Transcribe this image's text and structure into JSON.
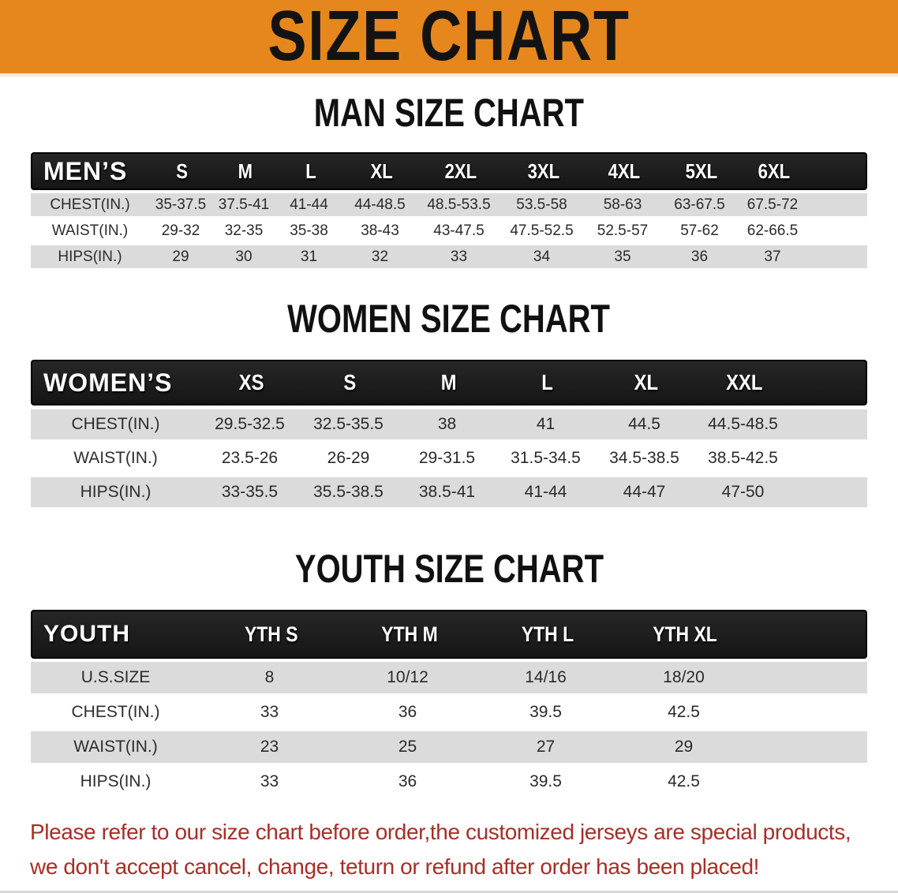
{
  "banner": {
    "title": "SIZE CHART"
  },
  "colors": {
    "banner_bg": "#E6871E",
    "header_bar": "#161616",
    "row_alt": "#DBDBDB",
    "row_plain": "#FFFFFF",
    "disclaimer_red": "#A52F28"
  },
  "sections": [
    {
      "id": "men",
      "heading": "MAN SIZE CHART",
      "table": {
        "label": "MEN’S",
        "columns": [
          "S",
          "M",
          "L",
          "XL",
          "2XL",
          "3XL",
          "4XL",
          "5XL",
          "6XL"
        ],
        "rows": [
          {
            "label": "CHEST(IN.)",
            "values": [
              "35-37.5",
              "37.5-41",
              "41-44",
              "44-48.5",
              "48.5-53.5",
              "53.5-58",
              "58-63",
              "63-67.5",
              "67.5-72"
            ]
          },
          {
            "label": "WAIST(IN.)",
            "values": [
              "29-32",
              "32-35",
              "35-38",
              "38-43",
              "43-47.5",
              "47.5-52.5",
              "52.5-57",
              "57-62",
              "62-66.5"
            ]
          },
          {
            "label": "HIPS(IN.)",
            "values": [
              "29",
              "30",
              "31",
              "32",
              "33",
              "34",
              "35",
              "36",
              "37"
            ]
          }
        ]
      }
    },
    {
      "id": "women",
      "heading": "WOMEN SIZE CHART",
      "table": {
        "label": "WOMEN’S",
        "columns": [
          "XS",
          "S",
          "M",
          "L",
          "XL",
          "XXL"
        ],
        "rows": [
          {
            "label": "CHEST(IN.)",
            "values": [
              "29.5-32.5",
              "32.5-35.5",
              "38",
              "41",
              "44.5",
              "44.5-48.5"
            ]
          },
          {
            "label": "WAIST(IN.)",
            "values": [
              "23.5-26",
              "26-29",
              "29-31.5",
              "31.5-34.5",
              "34.5-38.5",
              "38.5-42.5"
            ]
          },
          {
            "label": "HIPS(IN.)",
            "values": [
              "33-35.5",
              "35.5-38.5",
              "38.5-41",
              "41-44",
              "44-47",
              "47-50"
            ]
          }
        ]
      }
    },
    {
      "id": "youth",
      "heading": "YOUTH SIZE CHART",
      "table": {
        "label": "YOUTH",
        "columns": [
          "YTH S",
          "YTH M",
          "YTH L",
          "YTH XL"
        ],
        "rows": [
          {
            "label": "U.S.SIZE",
            "values": [
              "8",
              "10/12",
              "14/16",
              "18/20"
            ]
          },
          {
            "label": "CHEST(IN.)",
            "values": [
              "33",
              "36",
              "39.5",
              "42.5"
            ]
          },
          {
            "label": "WAIST(IN.)",
            "values": [
              "23",
              "25",
              "27",
              "29"
            ]
          },
          {
            "label": "HIPS(IN.)",
            "values": [
              "33",
              "36",
              "39.5",
              "42.5"
            ]
          }
        ]
      }
    }
  ],
  "disclaimer": {
    "lines": [
      "Please refer to our size chart before order,the customized jerseys are special products,",
      "we don't accept cancel, change, teturn or refund after order has been placed!"
    ]
  }
}
